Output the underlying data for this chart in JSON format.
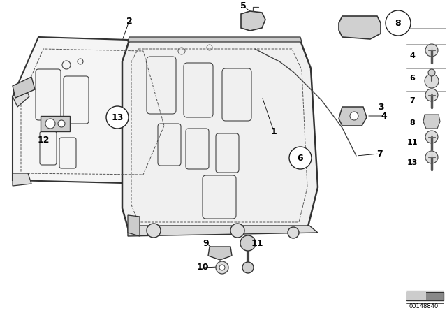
{
  "background_color": "#ffffff",
  "image_number": "00148840",
  "fig_width": 6.4,
  "fig_height": 4.48,
  "dpi": 100
}
